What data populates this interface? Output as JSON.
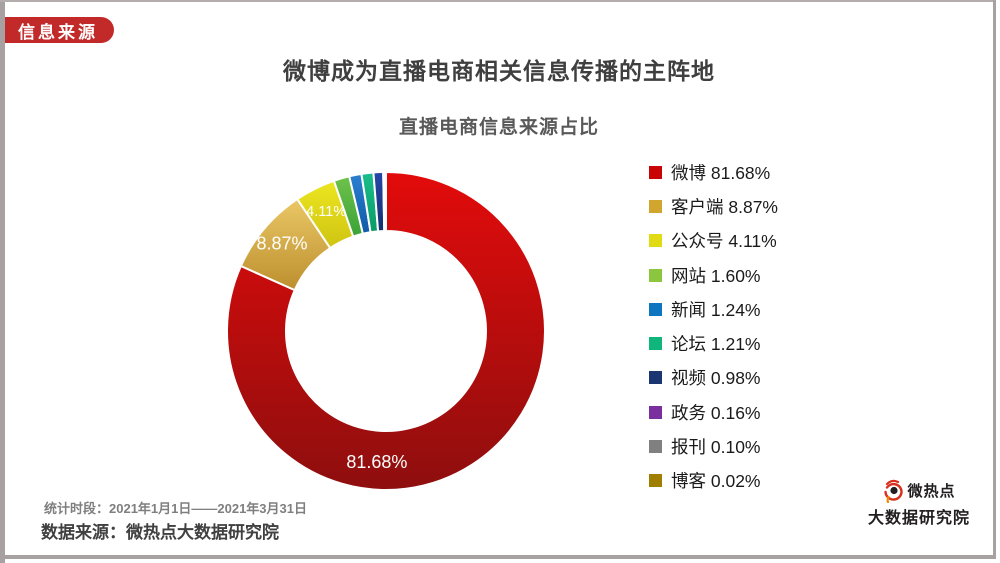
{
  "badge": {
    "label": "信息来源",
    "color": "#c22a2a"
  },
  "header": {
    "title": "微博成为直播电商相关信息传播的主阵地",
    "subtitle": "直播电商信息来源占比"
  },
  "chart_data": {
    "type": "pie",
    "subtype": "donut",
    "title": "直播电商信息来源占比",
    "start_angle": "12-oclock",
    "direction": "clockwise",
    "legend_position": "right",
    "inner_radius_ratio": 0.63,
    "categories": [
      "微博",
      "客户端",
      "公众号",
      "网站",
      "新闻",
      "论坛",
      "视频",
      "政务",
      "报刊",
      "博客"
    ],
    "values": [
      81.68,
      8.87,
      4.11,
      1.6,
      1.24,
      1.21,
      0.98,
      0.16,
      0.1,
      0.02
    ],
    "percent_labels": [
      "81.68%",
      "8.87%",
      "4.11%",
      "1.60%",
      "1.24%",
      "1.21%",
      "0.98%",
      "0.16%",
      "0.10%",
      "0.02%"
    ],
    "slice_labels_shown_on_chart": [
      "81.68%",
      "8.87%",
      "4.11%"
    ],
    "legend_colors": [
      "#c80404",
      "#d2a62e",
      "#e0db14",
      "#8cc63e",
      "#0e76c0",
      "#10b57b",
      "#1a3572",
      "#7a2f9e",
      "#808080",
      "#a07e00"
    ],
    "slice_gradients": [
      [
        "#e30b0b",
        "#8e0e0e"
      ],
      [
        "#eac766",
        "#bd8f2e"
      ],
      [
        "#ece61f",
        "#cfc413"
      ],
      [
        "#6fc24a",
        "#3aa238"
      ],
      [
        "#2b7fd0",
        "#0f5aa8"
      ],
      [
        "#19be8c",
        "#0a9b66"
      ],
      [
        "#2547a8",
        "#14306f"
      ],
      [
        "#8a3bb8",
        "#5e2380"
      ],
      [
        "#999999",
        "#6e6e6e"
      ],
      [
        "#b8950a",
        "#8a6e00"
      ]
    ],
    "label_text_color": "#ffffff"
  },
  "footer": {
    "period": "统计时段：2021年1月1日——2021年3月31日",
    "source": "数据来源：微热点大数据研究院"
  },
  "logo": {
    "brand": "微热点",
    "subtitle": "大数据研究院",
    "icon_color": "#d7301f"
  }
}
